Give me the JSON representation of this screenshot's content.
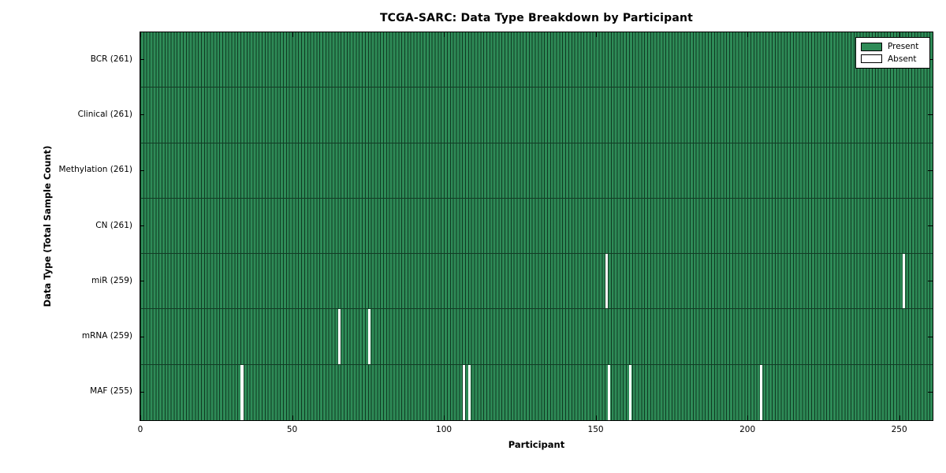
{
  "chart_data": {
    "type": "heatmap",
    "title": "TCGA-SARC: Data Type Breakdown by Participant",
    "xlabel": "Participant",
    "ylabel": "Data Type (Total Sample Count)",
    "total_participants": 261,
    "x_ticks": [
      0,
      50,
      100,
      150,
      200,
      250
    ],
    "x_range": [
      0,
      261
    ],
    "grid": false,
    "legend_position": "upper right",
    "rows": [
      {
        "name": "bcr",
        "label": "BCR (261)",
        "data_type": "BCR",
        "present_count": 261,
        "absent_participants": []
      },
      {
        "name": "clinical",
        "label": "Clinical (261)",
        "data_type": "Clinical",
        "present_count": 261,
        "absent_participants": []
      },
      {
        "name": "methylation",
        "label": "Methylation (261)",
        "data_type": "Methylation",
        "present_count": 261,
        "absent_participants": []
      },
      {
        "name": "cn",
        "label": "CN (261)",
        "data_type": "CN",
        "present_count": 261,
        "absent_participants": []
      },
      {
        "name": "mir",
        "label": "miR (259)",
        "data_type": "miR",
        "present_count": 259,
        "absent_participants": [
          153,
          251
        ]
      },
      {
        "name": "mrna",
        "label": "mRNA (259)",
        "data_type": "mRNA",
        "present_count": 259,
        "absent_participants": [
          65,
          75
        ]
      },
      {
        "name": "maf",
        "label": "MAF (255)",
        "data_type": "MAF",
        "present_count": 255,
        "absent_participants": [
          33,
          106,
          108,
          154,
          161,
          204
        ]
      }
    ],
    "legend": [
      {
        "label": "Present",
        "color": "#2e8b57"
      },
      {
        "label": "Absent",
        "color": "#ffffff"
      }
    ],
    "colors": {
      "present": "#2e8b57",
      "present_edge": "#113822",
      "absent": "#ffffff",
      "axis": "#000000",
      "background": "#ffffff"
    }
  }
}
